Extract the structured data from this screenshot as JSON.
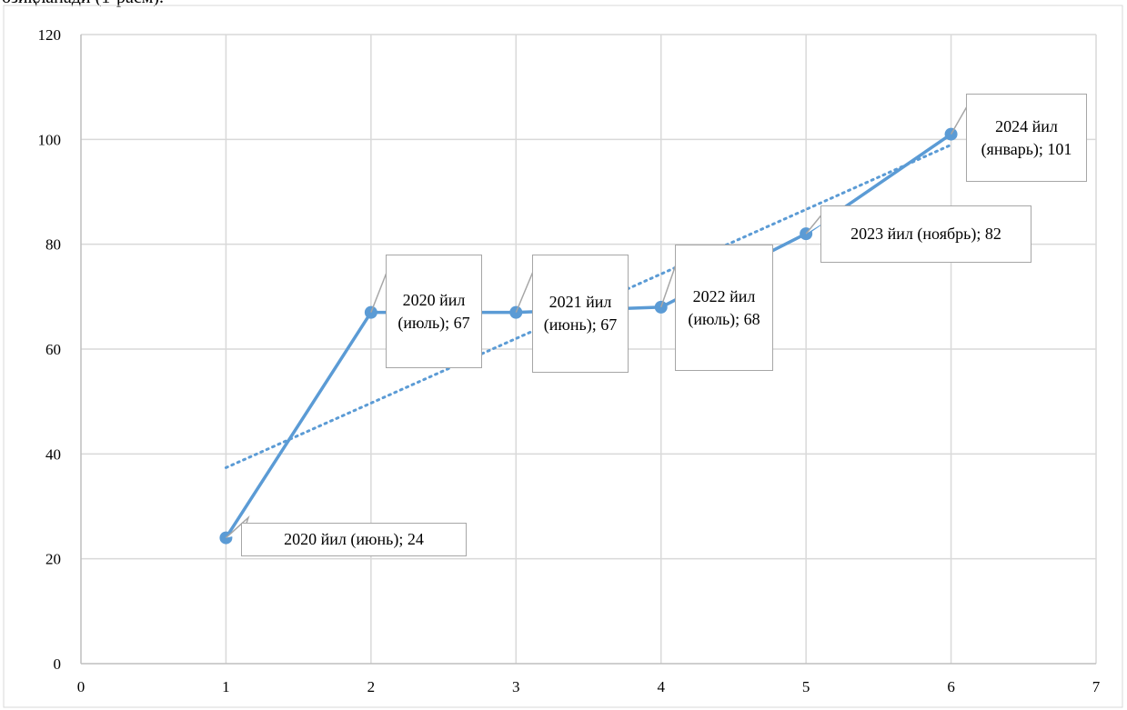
{
  "page_header_fragment": "озиқланади (1-расм).",
  "chart_data": {
    "type": "scatter",
    "x": [
      1,
      2,
      3,
      4,
      5,
      6
    ],
    "y": [
      24,
      67,
      67,
      68,
      82,
      101
    ],
    "point_labels": [
      "2020 йил (июнь); 24",
      "2020 йил (июль); 67",
      "2021 йил (июнь); 67",
      "2022 йил (июль); 68",
      "2023 йил (ноябрь); 82",
      "2024 йил (январь); 101"
    ],
    "xlim": [
      0,
      7
    ],
    "ylim": [
      0,
      120
    ],
    "x_ticks": [
      0,
      1,
      2,
      3,
      4,
      5,
      6,
      7
    ],
    "y_ticks": [
      0,
      20,
      40,
      60,
      80,
      100,
      120
    ],
    "grid": true,
    "connect_points": true,
    "trendline": {
      "kind": "linear",
      "style": "dotted"
    },
    "legend": "none",
    "colors": {
      "series": "#5b9bd5",
      "grid": "#d9d9d9",
      "axis": "#bfbfbf",
      "callout_border": "#a6a6a6"
    }
  }
}
